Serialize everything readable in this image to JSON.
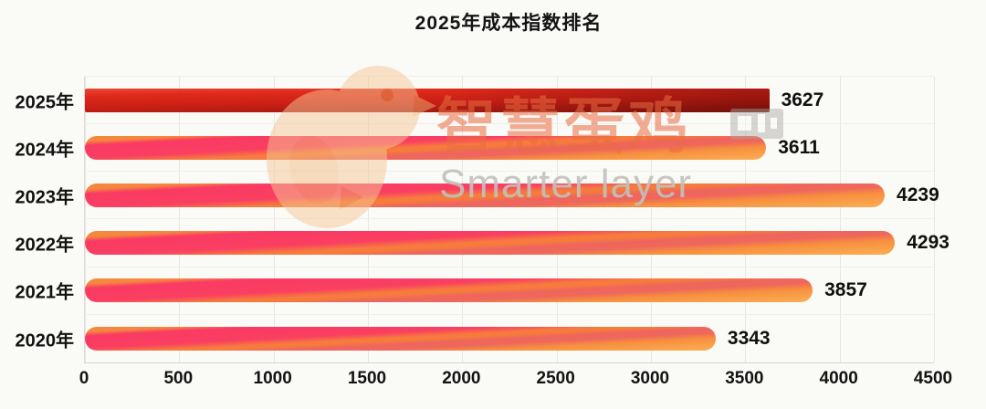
{
  "page": {
    "background": "#fafaf7"
  },
  "chart_data": {
    "type": "bar",
    "orientation": "horizontal",
    "title": "2025年成本指数排名",
    "categories": [
      "2025年",
      "2024年",
      "2023年",
      "2022年",
      "2021年",
      "2020年"
    ],
    "values": [
      3627,
      3611,
      4239,
      4293,
      3857,
      3343
    ],
    "xlabel": "",
    "ylabel": "",
    "xlim": [
      0,
      4500
    ],
    "x_ticks": [
      0,
      500,
      1000,
      1500,
      2000,
      2500,
      3000,
      3500,
      4000,
      4500
    ],
    "grid": "vertical",
    "legend": "none",
    "highlight_index": 0,
    "colors": {
      "highlight_bar_top": "#e02a1c",
      "highlight_bar_bottom": "#8a140c",
      "bar_orange": "#f5873f",
      "bar_pink": "#fa3a63",
      "bar_coral": "#ee665c",
      "bar_gold": "#fbae55",
      "gridline": "#e7e6e2",
      "text": "#121212"
    }
  },
  "watermark": {
    "logo_icon": "chick-logo",
    "text_cn": "智慧蛋鸡",
    "text_en": "Smarter layer",
    "cn_color": "#ea6c42",
    "en_color": "#c2c1be"
  }
}
